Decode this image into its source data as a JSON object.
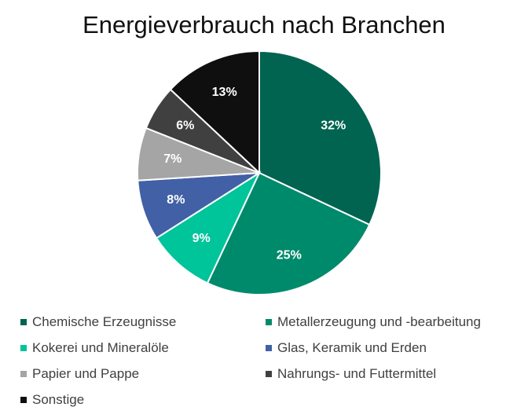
{
  "chart_data": {
    "type": "pie",
    "title": "Energieverbrauch nach Branchen",
    "categories": [
      "Chemische Erzeugnisse",
      "Metallerzeugung und -bearbeitung",
      "Kokerei und Mineralöle",
      "Glas, Keramik und Erden",
      "Papier und Pappe",
      "Nahrungs- und Futtermittel",
      "Sonstige"
    ],
    "values": [
      32,
      25,
      9,
      8,
      7,
      6,
      13
    ],
    "labels": [
      "32%",
      "25%",
      "9%",
      "8%",
      "7%",
      "6%",
      "13%"
    ],
    "colors": [
      "#006450",
      "#008a6c",
      "#00c49a",
      "#4260a6",
      "#a5a5a5",
      "#404040",
      "#0f0f0f"
    ],
    "legend_position": "bottom"
  }
}
